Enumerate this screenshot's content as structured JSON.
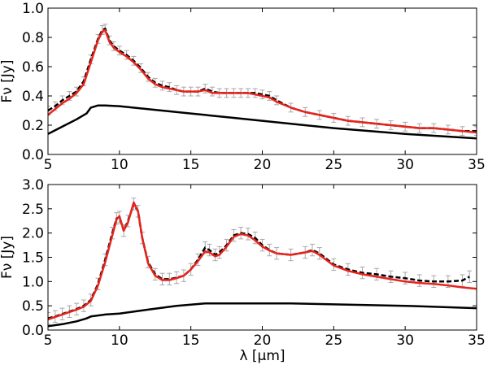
{
  "colors": {
    "model": "#e8231c",
    "stellar": "#000000",
    "observed": "#000000",
    "errorbar": "#a8a8a8"
  },
  "chart_data": [
    {
      "type": "line",
      "xlim": [
        5,
        35
      ],
      "ylim": [
        0.0,
        1.0
      ],
      "xticks": [
        "5",
        "10",
        "15",
        "20",
        "25",
        "30",
        "35"
      ],
      "yticks": [
        "0.0",
        "0.2",
        "0.4",
        "0.6",
        "0.8",
        "1.0"
      ],
      "xlabel": "",
      "ylabel": "Fν [Jy]",
      "grid": false,
      "series": [
        {
          "role": "observed",
          "style": "dashed-with-errorbars",
          "x": [
            5.0,
            5.5,
            6.0,
            6.5,
            7.0,
            7.5,
            8.0,
            8.5,
            8.8,
            9.0,
            9.3,
            9.6,
            10.0,
            10.5,
            11.0,
            11.5,
            12.0,
            12.5,
            13.0,
            13.5,
            14.0,
            14.5,
            15.0,
            15.5,
            16.0,
            16.5,
            17.0,
            17.5,
            18.0,
            18.5,
            19.0,
            19.5,
            20.0,
            20.5,
            21.0,
            22.0,
            23.0,
            24.0,
            25.0,
            26.0,
            27.0,
            28.0,
            29.0,
            30.0,
            31.0,
            32.0,
            33.0,
            34.0,
            35.0
          ],
          "y": [
            0.3,
            0.33,
            0.37,
            0.4,
            0.43,
            0.5,
            0.65,
            0.79,
            0.85,
            0.86,
            0.78,
            0.74,
            0.71,
            0.68,
            0.64,
            0.59,
            0.53,
            0.49,
            0.47,
            0.46,
            0.44,
            0.43,
            0.43,
            0.43,
            0.45,
            0.43,
            0.42,
            0.42,
            0.42,
            0.42,
            0.42,
            0.42,
            0.41,
            0.4,
            0.37,
            0.32,
            0.29,
            0.27,
            0.25,
            0.23,
            0.22,
            0.21,
            0.2,
            0.19,
            0.18,
            0.18,
            0.17,
            0.16,
            0.16
          ],
          "err": 0.03
        },
        {
          "role": "model",
          "style": "solid",
          "x": [
            5.0,
            5.5,
            6.0,
            6.5,
            7.0,
            7.5,
            8.0,
            8.5,
            8.8,
            9.0,
            9.3,
            9.6,
            10.0,
            10.5,
            11.0,
            11.5,
            12.0,
            12.5,
            13.0,
            13.5,
            14.0,
            14.5,
            15.0,
            15.5,
            16.0,
            16.5,
            17.0,
            17.5,
            18.0,
            18.5,
            19.0,
            19.5,
            20.0,
            20.5,
            21.0,
            22.0,
            23.0,
            24.0,
            25.0,
            26.0,
            27.0,
            28.0,
            29.0,
            30.0,
            31.0,
            32.0,
            33.0,
            34.0,
            35.0
          ],
          "y": [
            0.27,
            0.31,
            0.35,
            0.38,
            0.42,
            0.48,
            0.63,
            0.78,
            0.84,
            0.85,
            0.77,
            0.73,
            0.7,
            0.67,
            0.63,
            0.58,
            0.52,
            0.48,
            0.46,
            0.45,
            0.44,
            0.43,
            0.43,
            0.43,
            0.44,
            0.42,
            0.42,
            0.42,
            0.42,
            0.42,
            0.42,
            0.41,
            0.4,
            0.39,
            0.36,
            0.32,
            0.29,
            0.27,
            0.25,
            0.23,
            0.22,
            0.21,
            0.2,
            0.19,
            0.18,
            0.18,
            0.17,
            0.16,
            0.15
          ]
        },
        {
          "role": "stellar",
          "style": "solid",
          "x": [
            5.0,
            6.0,
            7.0,
            7.7,
            8.0,
            8.5,
            9.0,
            10.0,
            12.0,
            15.0,
            18.0,
            20.0,
            25.0,
            30.0,
            35.0
          ],
          "y": [
            0.14,
            0.19,
            0.24,
            0.28,
            0.32,
            0.335,
            0.335,
            0.33,
            0.31,
            0.28,
            0.25,
            0.23,
            0.18,
            0.14,
            0.11
          ]
        }
      ]
    },
    {
      "type": "line",
      "xlim": [
        5,
        35
      ],
      "ylim": [
        0.0,
        3.0
      ],
      "xticks": [
        "5",
        "10",
        "15",
        "20",
        "25",
        "30",
        "35"
      ],
      "yticks": [
        "0.0",
        "0.5",
        "1.0",
        "1.5",
        "2.0",
        "2.5",
        "3.0"
      ],
      "xlabel": "λ [μm]",
      "ylabel": "Fν [Jy]",
      "grid": false,
      "series": [
        {
          "role": "observed",
          "style": "dashed-with-errorbars",
          "x": [
            5.0,
            5.5,
            6.0,
            6.5,
            7.0,
            7.5,
            8.0,
            8.5,
            9.0,
            9.5,
            9.8,
            10.0,
            10.3,
            10.6,
            11.0,
            11.3,
            11.6,
            12.0,
            12.5,
            13.0,
            13.5,
            14.0,
            14.5,
            15.0,
            15.5,
            16.0,
            16.3,
            16.7,
            17.0,
            17.5,
            18.0,
            18.5,
            19.0,
            19.5,
            20.0,
            20.5,
            21.0,
            22.0,
            23.0,
            23.5,
            24.0,
            25.0,
            26.0,
            27.0,
            28.0,
            29.0,
            30.0,
            31.0,
            32.0,
            33.0,
            34.0,
            34.5
          ],
          "y": [
            0.24,
            0.28,
            0.33,
            0.38,
            0.43,
            0.5,
            0.62,
            0.95,
            1.45,
            2.0,
            2.3,
            2.33,
            2.05,
            2.25,
            2.6,
            2.45,
            1.9,
            1.4,
            1.15,
            1.05,
            1.05,
            1.08,
            1.12,
            1.25,
            1.45,
            1.7,
            1.65,
            1.55,
            1.6,
            1.75,
            1.95,
            2.0,
            1.98,
            1.9,
            1.75,
            1.65,
            1.58,
            1.55,
            1.6,
            1.65,
            1.58,
            1.35,
            1.25,
            1.18,
            1.15,
            1.1,
            1.07,
            1.02,
            1.0,
            1.0,
            1.02,
            1.1
          ],
          "err": 0.12
        },
        {
          "role": "model",
          "style": "solid",
          "x": [
            5.0,
            5.5,
            6.0,
            6.5,
            7.0,
            7.5,
            8.0,
            8.5,
            9.0,
            9.5,
            9.8,
            10.0,
            10.3,
            10.6,
            11.0,
            11.3,
            11.6,
            12.0,
            12.5,
            13.0,
            13.5,
            14.0,
            14.5,
            15.0,
            15.5,
            16.0,
            16.3,
            16.7,
            17.0,
            17.5,
            18.0,
            18.5,
            19.0,
            19.5,
            20.0,
            20.5,
            21.0,
            22.0,
            23.0,
            23.5,
            24.0,
            25.0,
            26.0,
            27.0,
            28.0,
            29.0,
            30.0,
            31.0,
            32.0,
            33.0,
            34.0,
            35.0
          ],
          "y": [
            0.22,
            0.27,
            0.32,
            0.37,
            0.42,
            0.48,
            0.6,
            0.92,
            1.4,
            1.95,
            2.28,
            2.35,
            2.05,
            2.22,
            2.63,
            2.45,
            1.9,
            1.38,
            1.12,
            1.03,
            1.03,
            1.07,
            1.12,
            1.25,
            1.42,
            1.62,
            1.6,
            1.52,
            1.55,
            1.72,
            1.92,
            1.98,
            1.95,
            1.85,
            1.72,
            1.64,
            1.58,
            1.55,
            1.6,
            1.63,
            1.55,
            1.33,
            1.22,
            1.15,
            1.1,
            1.05,
            1.0,
            0.97,
            0.95,
            0.92,
            0.88,
            0.85
          ]
        },
        {
          "role": "stellar",
          "style": "solid",
          "x": [
            5.0,
            6.0,
            7.0,
            7.7,
            8.0,
            9.0,
            10.0,
            12.0,
            14.0,
            16.0,
            18.0,
            20.0,
            22.0,
            25.0,
            30.0,
            35.0
          ],
          "y": [
            0.08,
            0.12,
            0.18,
            0.24,
            0.28,
            0.32,
            0.34,
            0.42,
            0.5,
            0.55,
            0.55,
            0.55,
            0.55,
            0.53,
            0.5,
            0.45
          ]
        }
      ]
    }
  ]
}
